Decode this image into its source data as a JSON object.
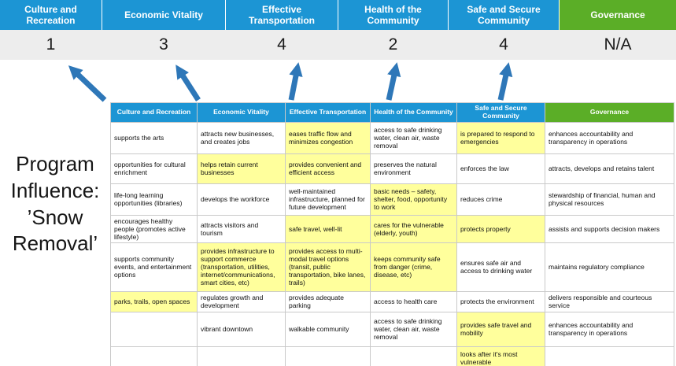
{
  "title": {
    "lines": [
      "Program",
      "Influence:",
      "’Snow",
      "Removal’"
    ]
  },
  "summary": {
    "columns": [
      {
        "label": "Culture and Recreation",
        "score": "1"
      },
      {
        "label": "Economic Vitality",
        "score": "3"
      },
      {
        "label": "Effective Transportation",
        "score": "4"
      },
      {
        "label": "Health of the Community",
        "score": "2"
      },
      {
        "label": "Safe and Secure Community",
        "score": "4"
      },
      {
        "label": "Governance",
        "score": "N/A"
      }
    ]
  },
  "matrix": {
    "headers": [
      "Culture and Recreation",
      "Economic Vitality",
      "Effective Transportation",
      "Health of the Community",
      "Safe and Secure Community",
      "Governance"
    ],
    "rows": [
      [
        {
          "text": "supports the arts",
          "highlight": false
        },
        {
          "text": "attracts new businesses, and creates jobs",
          "highlight": false
        },
        {
          "text": "eases traffic flow and minimizes congestion",
          "highlight": true
        },
        {
          "text": "access to safe drinking water, clean air, waste removal",
          "highlight": false
        },
        {
          "text": "is prepared to respond to emergencies",
          "highlight": true
        },
        {
          "text": "enhances accountability and transparency in operations",
          "highlight": false
        }
      ],
      [
        {
          "text": "opportunities for cultural enrichment",
          "highlight": false
        },
        {
          "text": "helps retain current businesses",
          "highlight": true
        },
        {
          "text": "provides convenient and efficient access",
          "highlight": true
        },
        {
          "text": "preserves the natural environment",
          "highlight": false
        },
        {
          "text": "enforces the law",
          "highlight": false
        },
        {
          "text": "attracts, develops and retains talent",
          "highlight": false
        }
      ],
      [
        {
          "text": "life-long learning opportunities (libraries)",
          "highlight": false
        },
        {
          "text": "develops the workforce",
          "highlight": false
        },
        {
          "text": "well-maintained infrastructure, planned for future development",
          "highlight": false
        },
        {
          "text": "basic needs – safety, shelter, food, opportunity to work",
          "highlight": true
        },
        {
          "text": "reduces crime",
          "highlight": false
        },
        {
          "text": "stewardship of financial, human and physical resources",
          "highlight": false
        }
      ],
      [
        {
          "text": "encourages healthy people (promotes active lifestyle)",
          "highlight": false
        },
        {
          "text": "attracts visitors and tourism",
          "highlight": false
        },
        {
          "text": "safe travel, well-lit",
          "highlight": true
        },
        {
          "text": "cares for the vulnerable (elderly, youth)",
          "highlight": true
        },
        {
          "text": "protects property",
          "highlight": true
        },
        {
          "text": "assists and supports decision makers",
          "highlight": false
        }
      ],
      [
        {
          "text": "supports community events, and entertainment options",
          "highlight": false
        },
        {
          "text": "provides infrastructure to support commerce (transportation, utilities, internet/communications, smart cities, etc)",
          "highlight": true
        },
        {
          "text": "provides access to multi-modal travel options (transit, public transportation, bike lanes, trails)",
          "highlight": true
        },
        {
          "text": "keeps community safe from danger (crime, disease, etc)",
          "highlight": true
        },
        {
          "text": "ensures safe air and access to drinking water",
          "highlight": false
        },
        {
          "text": "maintains regulatory compliance",
          "highlight": false
        }
      ],
      [
        {
          "text": "parks, trails, open spaces",
          "highlight": true
        },
        {
          "text": "regulates growth and development",
          "highlight": false
        },
        {
          "text": "provides adequate parking",
          "highlight": false
        },
        {
          "text": "access to health care",
          "highlight": false
        },
        {
          "text": "protects the environment",
          "highlight": false
        },
        {
          "text": "delivers responsible and courteous service",
          "highlight": false
        }
      ],
      [
        {
          "text": "",
          "highlight": false
        },
        {
          "text": "vibrant downtown",
          "highlight": false
        },
        {
          "text": "walkable community",
          "highlight": false
        },
        {
          "text": "access to safe drinking water, clean air, waste removal",
          "highlight": false
        },
        {
          "text": "provides safe travel and mobility",
          "highlight": true
        },
        {
          "text": "enhances accountability and transparency in operations",
          "highlight": false
        }
      ],
      [
        {
          "text": "",
          "highlight": false
        },
        {
          "text": "",
          "highlight": false
        },
        {
          "text": "",
          "highlight": false
        },
        {
          "text": "",
          "highlight": false
        },
        {
          "text": "looks after it's most vulnerable",
          "highlight": true
        },
        {
          "text": "",
          "highlight": false
        }
      ]
    ]
  },
  "colors": {
    "header_blue": "#1C95D4",
    "header_green": "#5BAE27",
    "highlight_yellow": "#FFFF9C",
    "score_band_gray": "#EDEDED",
    "arrow_blue": "#2E77B8"
  }
}
